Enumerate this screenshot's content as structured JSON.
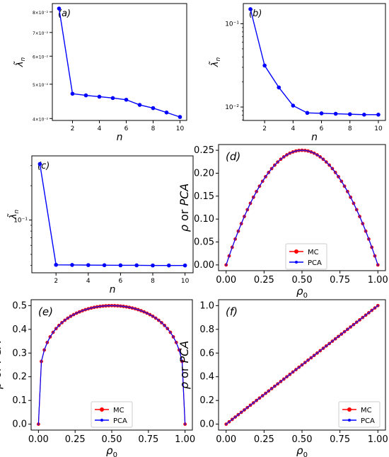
{
  "chart_data": [
    {
      "panel_label": "(a)",
      "type": "line",
      "yscale": "log",
      "xlabel": "n",
      "ylabel": "λ̃n",
      "xlim": [
        0.5,
        10.5
      ],
      "ylim": [
        0.0395,
        0.0845
      ],
      "xticks": [
        2,
        4,
        6,
        8,
        10
      ],
      "yticks": [
        {
          "value": 0.04,
          "label": "4×10⁻²"
        },
        {
          "value": 0.05,
          "label": "5×10⁻²"
        },
        {
          "value": 0.06,
          "label": "6×10⁻²"
        },
        {
          "value": 0.07,
          "label": "7×10⁻²"
        },
        {
          "value": 0.08,
          "label": "8×10⁻²"
        }
      ],
      "series": [
        {
          "x": [
            1,
            2,
            3,
            4,
            5,
            6,
            7,
            8,
            9,
            10
          ],
          "values": [
            0.0818,
            0.047,
            0.0465,
            0.0461,
            0.0457,
            0.0452,
            0.0437,
            0.0428,
            0.0416,
            0.0404
          ]
        }
      ]
    },
    {
      "panel_label": "(b)",
      "type": "line",
      "yscale": "log",
      "xlabel": "n",
      "ylabel": "λ̃n",
      "xlim": [
        0.5,
        10.5
      ],
      "ylim": [
        0.0069,
        0.175
      ],
      "xticks": [
        2,
        4,
        6,
        8,
        10
      ],
      "yticks": [
        {
          "value": 0.1,
          "label": "10⁻¹"
        },
        {
          "value": 0.01,
          "label": "10⁻²"
        }
      ],
      "series": [
        {
          "x": [
            1,
            2,
            3,
            4,
            5,
            6,
            7,
            8,
            9,
            10
          ],
          "values": [
            0.15,
            0.0315,
            0.0172,
            0.0104,
            0.0085,
            0.0084,
            0.0083,
            0.0082,
            0.0081,
            0.0081
          ]
        }
      ]
    },
    {
      "panel_label": "(c)",
      "type": "line",
      "yscale": "log",
      "xlabel": "n",
      "ylabel": "λ̃n",
      "xlim": [
        0.5,
        10.5
      ],
      "ylim": [
        0.0345,
        0.365
      ],
      "xticks": [
        2,
        4,
        6,
        8,
        10
      ],
      "yticks": [
        {
          "value": 0.1,
          "label": "10⁻¹"
        }
      ],
      "series": [
        {
          "x": [
            1,
            2,
            3,
            4,
            5,
            6,
            7,
            8,
            9,
            10
          ],
          "values": [
            0.31,
            0.0405,
            0.0404,
            0.0403,
            0.0402,
            0.0401,
            0.0401,
            0.04,
            0.04,
            0.04
          ]
        }
      ]
    },
    {
      "panel_label": "(d)",
      "type": "line",
      "function": "rho0*(1-rho0)",
      "xlabel": "ρ0",
      "ylabel": "ρ or PCA",
      "xlim": [
        -0.05,
        1.05
      ],
      "ylim": [
        -0.0125,
        0.2625
      ],
      "xticks": [
        "0.00",
        "0.25",
        "0.50",
        "0.75",
        "1.00"
      ],
      "yticks": [
        "0.00",
        "0.05",
        "0.10",
        "0.15",
        "0.20",
        "0.25"
      ],
      "legend": "lower-center",
      "series": [
        {
          "name": "MC",
          "color": "#ff0000"
        },
        {
          "name": "PCA",
          "color": "#0000ff"
        }
      ]
    },
    {
      "panel_label": "(e)",
      "type": "line",
      "function": "2*sqrt(rho0*(1-rho0))*(1-...)",
      "xlabel": "ρ0",
      "ylabel": "ρ or PCA",
      "xlim": [
        -0.05,
        1.05
      ],
      "ylim": [
        -0.025,
        0.525
      ],
      "xticks": [
        "0.00",
        "0.25",
        "0.50",
        "0.75",
        "1.00"
      ],
      "yticks": [
        "0.0",
        "0.1",
        "0.2",
        "0.3",
        "0.4",
        "0.5"
      ],
      "legend": "lower-center",
      "series": [
        {
          "name": "MC",
          "color": "#ff0000"
        },
        {
          "name": "PCA",
          "color": "#0000ff"
        }
      ]
    },
    {
      "panel_label": "(f)",
      "type": "line",
      "function": "rho0",
      "xlabel": "ρ0",
      "ylabel": "ρ or PCA",
      "xlim": [
        -0.05,
        1.05
      ],
      "ylim": [
        -0.05,
        1.05
      ],
      "xticks": [
        "0.00",
        "0.25",
        "0.50",
        "0.75",
        "1.00"
      ],
      "yticks": [
        "0.0",
        "0.2",
        "0.4",
        "0.6",
        "0.8",
        "1.0"
      ],
      "legend": "lower-right",
      "series": [
        {
          "name": "MC",
          "color": "#ff0000"
        },
        {
          "name": "PCA",
          "color": "#0000ff"
        }
      ]
    }
  ],
  "colors": {
    "mc": "#ff0000",
    "pca": "#0000ff",
    "axis": "#000000"
  }
}
